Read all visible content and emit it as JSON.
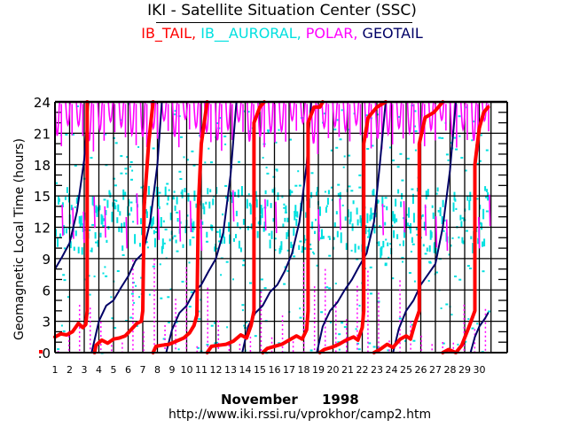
{
  "header": {
    "title": "IKI - Satellite Situation Center (SSC)",
    "legend": [
      {
        "label": "IB_TAIL",
        "color": "#ff0000",
        "sep": ", "
      },
      {
        "label": "IB__AURORAL",
        "color": "#00e0e0",
        "sep": ", "
      },
      {
        "label": "POLAR",
        "color": "#ff00ff",
        "sep": ", "
      },
      {
        "label": "GEOTAIL",
        "color": "#000066",
        "sep": ""
      }
    ]
  },
  "footer": {
    "month": "November",
    "year": "1998",
    "url": "http://www.iki.rssi.ru/vprokhor/camp2.htm"
  },
  "chart_data": {
    "type": "scatter",
    "title": "IKI - Satellite Situation Center (SSC)",
    "xlabel": "November 1998",
    "ylabel": "Geomagnetic Local Time (hours)",
    "xlim": [
      1,
      31
    ],
    "ylim": [
      0,
      24
    ],
    "x_ticks": [
      "1",
      "2",
      "3",
      "4",
      "5",
      "6",
      "7",
      "8",
      "9",
      "10",
      "11",
      "12",
      "13",
      "14",
      "15",
      "16",
      "17",
      "18",
      "19",
      "20",
      "21",
      "22",
      "23",
      "24",
      "25",
      "26",
      "27",
      "28",
      "29",
      "30"
    ],
    "y_ticks": [
      ".0",
      "3",
      "6",
      "9",
      "12",
      "15",
      "18",
      "21",
      "24"
    ],
    "y_tick_values": [
      0,
      3,
      6,
      9,
      12,
      15,
      18,
      21,
      24
    ],
    "grid": true,
    "legend_placement": "top-center",
    "series": [
      {
        "name": "GEOTAIL",
        "color": "#000066",
        "segments": [
          [
            [
              1.0,
              8.0
            ],
            [
              1.5,
              9.2
            ],
            [
              2.0,
              10.5
            ],
            [
              2.5,
              13.5
            ],
            [
              3.0,
              18.5
            ],
            [
              3.3,
              24.0
            ]
          ],
          [
            [
              3.5,
              0.0
            ],
            [
              4.0,
              3.0
            ],
            [
              4.5,
              4.5
            ],
            [
              5.0,
              5.0
            ],
            [
              5.5,
              6.2
            ],
            [
              6.0,
              7.3
            ],
            [
              6.5,
              8.8
            ],
            [
              7.0,
              9.5
            ],
            [
              7.5,
              12.5
            ],
            [
              8.0,
              18.0
            ],
            [
              8.3,
              24.0
            ]
          ],
          [
            [
              8.6,
              0.0
            ],
            [
              9.0,
              2.2
            ],
            [
              9.5,
              3.8
            ],
            [
              10.0,
              4.5
            ],
            [
              10.5,
              5.8
            ],
            [
              11.0,
              6.5
            ],
            [
              11.5,
              7.8
            ],
            [
              12.0,
              9.0
            ],
            [
              12.5,
              11.5
            ],
            [
              13.0,
              17.0
            ],
            [
              13.4,
              24.0
            ]
          ],
          [
            [
              13.8,
              0.0
            ],
            [
              14.2,
              2.5
            ],
            [
              14.7,
              3.8
            ],
            [
              15.2,
              4.5
            ],
            [
              15.7,
              5.8
            ],
            [
              16.2,
              6.5
            ],
            [
              16.7,
              7.8
            ],
            [
              17.2,
              9.5
            ],
            [
              17.7,
              12.5
            ],
            [
              18.2,
              18.0
            ],
            [
              18.5,
              24.0
            ]
          ],
          [
            [
              18.9,
              0.0
            ],
            [
              19.3,
              2.5
            ],
            [
              19.8,
              4.0
            ],
            [
              20.3,
              4.8
            ],
            [
              20.8,
              6.0
            ],
            [
              21.3,
              7.0
            ],
            [
              21.8,
              8.3
            ],
            [
              22.3,
              9.5
            ],
            [
              22.8,
              12.5
            ],
            [
              23.2,
              18.0
            ],
            [
              23.6,
              24.0
            ]
          ],
          [
            [
              24.1,
              0.0
            ],
            [
              24.5,
              2.3
            ],
            [
              25.0,
              4.0
            ],
            [
              25.5,
              5.0
            ],
            [
              26.0,
              6.5
            ],
            [
              26.5,
              7.5
            ],
            [
              27.0,
              8.5
            ],
            [
              27.5,
              12.0
            ],
            [
              28.0,
              17.5
            ],
            [
              28.4,
              24.0
            ]
          ],
          [
            [
              29.4,
              0.0
            ],
            [
              29.7,
              1.5
            ],
            [
              30.0,
              2.5
            ],
            [
              30.4,
              3.3
            ],
            [
              30.6,
              3.8
            ]
          ]
        ]
      },
      {
        "name": "IB_TAIL",
        "color": "#ff0000",
        "segments": [
          [
            [
              1.0,
              1.5
            ],
            [
              1.4,
              1.8
            ],
            [
              1.8,
              1.7
            ],
            [
              2.2,
              2.0
            ],
            [
              2.6,
              2.8
            ],
            [
              2.9,
              2.4
            ],
            [
              3.1,
              2.7
            ],
            [
              3.2,
              4.0
            ],
            [
              3.2,
              24.0
            ]
          ],
          [
            [
              3.7,
              0.0
            ],
            [
              3.8,
              0.7
            ],
            [
              4.2,
              1.2
            ],
            [
              4.6,
              0.9
            ],
            [
              5.0,
              1.3
            ],
            [
              5.4,
              1.4
            ],
            [
              5.8,
              1.6
            ],
            [
              6.2,
              2.2
            ],
            [
              6.6,
              2.8
            ],
            [
              6.9,
              3.0
            ],
            [
              7.0,
              4.0
            ],
            [
              7.1,
              14.0
            ],
            [
              7.4,
              20.0
            ],
            [
              7.7,
              24.0
            ]
          ],
          [
            [
              7.7,
              0.0
            ],
            [
              7.9,
              0.6
            ],
            [
              8.3,
              0.7
            ],
            [
              8.8,
              0.8
            ],
            [
              9.3,
              1.1
            ],
            [
              9.8,
              1.4
            ],
            [
              10.2,
              1.9
            ],
            [
              10.5,
              2.6
            ],
            [
              10.7,
              3.6
            ],
            [
              10.8,
              14.0
            ],
            [
              11.0,
              20.0
            ],
            [
              11.4,
              24.0
            ]
          ],
          [
            [
              11.4,
              0.0
            ],
            [
              11.7,
              0.6
            ],
            [
              12.2,
              0.7
            ],
            [
              12.7,
              0.8
            ],
            [
              13.2,
              1.1
            ],
            [
              13.7,
              1.7
            ],
            [
              14.1,
              1.4
            ],
            [
              14.4,
              2.6
            ],
            [
              14.6,
              4.0
            ],
            [
              14.6,
              22.0
            ],
            [
              15.0,
              23.5
            ],
            [
              15.3,
              24.0
            ]
          ],
          [
            [
              15.2,
              0.0
            ],
            [
              15.5,
              0.4
            ],
            [
              16.0,
              0.6
            ],
            [
              16.5,
              0.8
            ],
            [
              17.0,
              1.2
            ],
            [
              17.5,
              1.6
            ],
            [
              17.9,
              1.3
            ],
            [
              18.2,
              2.2
            ],
            [
              18.3,
              4.0
            ],
            [
              18.3,
              22.0
            ],
            [
              18.7,
              23.5
            ],
            [
              19.1,
              23.5
            ],
            [
              19.3,
              24.0
            ]
          ],
          [
            [
              19.1,
              0.0
            ],
            [
              19.4,
              0.3
            ],
            [
              19.9,
              0.5
            ],
            [
              20.4,
              0.8
            ],
            [
              20.9,
              1.2
            ],
            [
              21.4,
              1.5
            ],
            [
              21.7,
              1.2
            ],
            [
              22.0,
              2.4
            ],
            [
              22.1,
              4.0
            ],
            [
              22.1,
              20.0
            ],
            [
              22.4,
              22.5
            ],
            [
              23.0,
              23.5
            ],
            [
              23.6,
              24.0
            ]
          ],
          [
            [
              22.8,
              0.0
            ],
            [
              23.2,
              0.3
            ],
            [
              23.7,
              0.8
            ],
            [
              24.1,
              0.5
            ],
            [
              24.6,
              1.3
            ],
            [
              25.0,
              1.6
            ],
            [
              25.3,
              1.3
            ],
            [
              25.6,
              2.8
            ],
            [
              25.9,
              4.0
            ],
            [
              25.9,
              20.0
            ],
            [
              26.3,
              22.5
            ],
            [
              26.9,
              23.0
            ],
            [
              27.5,
              24.0
            ]
          ],
          [
            [
              27.5,
              0.0
            ],
            [
              27.9,
              0.3
            ],
            [
              28.4,
              0.0
            ],
            [
              28.8,
              0.7
            ],
            [
              29.3,
              2.5
            ],
            [
              29.7,
              4.0
            ],
            [
              29.7,
              18.0
            ],
            [
              30.0,
              21.5
            ],
            [
              30.3,
              23.0
            ],
            [
              30.6,
              23.5
            ]
          ]
        ]
      },
      {
        "name": "POLAR",
        "color": "#ff00ff",
        "pattern": "quasi-periodic orbits ~17.7h; dips from 24h to ~20-22h and low spikes to ~10-13h",
        "period_days": 0.73,
        "high_band": [
          20,
          24
        ],
        "low_band": [
          9,
          13
        ]
      },
      {
        "name": "IB__AURORAL",
        "color": "#00e0e0",
        "pattern": "dense dotted band concentrated between ~9h and ~16h, scattered dots over full range",
        "dense_band": [
          10,
          16
        ]
      }
    ]
  }
}
